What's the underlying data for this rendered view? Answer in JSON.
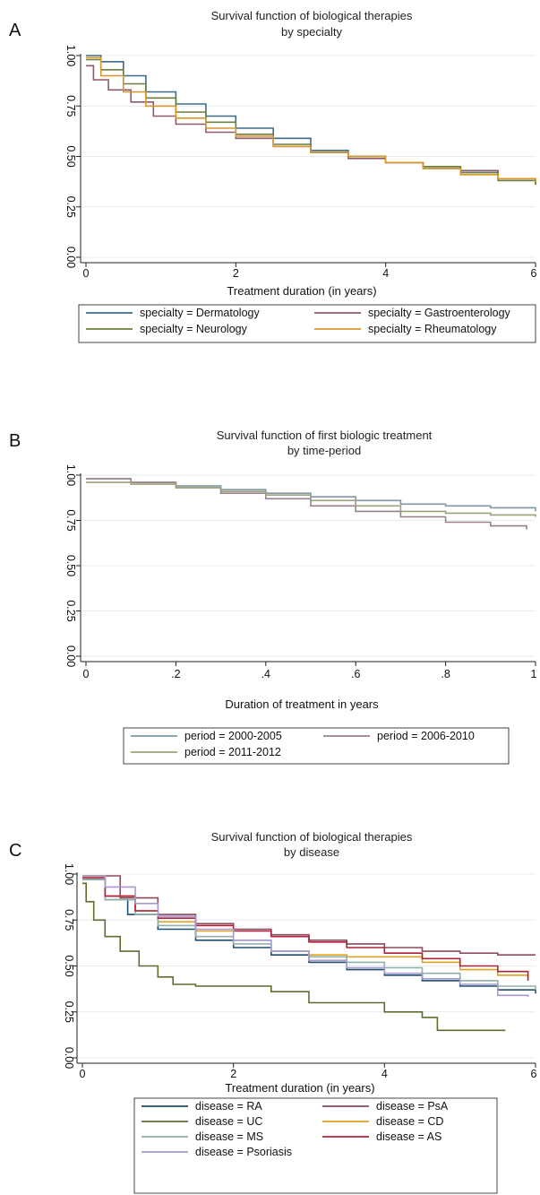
{
  "chart_data": [
    {
      "panel": "A",
      "type": "line",
      "title": "Survival function of biological therapies",
      "subtitle": "by specialty",
      "xlabel": "Treatment duration (in years)",
      "ylabel": "",
      "xlim": [
        0,
        6
      ],
      "ylim": [
        0,
        1
      ],
      "xticks": [
        "0",
        "2",
        "4",
        "6"
      ],
      "yticks": [
        "0.00",
        "0.25",
        "0.50",
        "0.75",
        "1.00"
      ],
      "grid": true,
      "legend_position": "bottom",
      "series": [
        {
          "name": "specialty = Dermatology",
          "color": "#3d6b8c",
          "x": [
            0,
            0.2,
            0.5,
            0.8,
            1.2,
            1.6,
            2.0,
            2.5,
            3.0,
            3.5,
            4.0,
            4.5,
            5.0,
            5.5,
            6.0
          ],
          "y": [
            1.0,
            0.97,
            0.9,
            0.82,
            0.76,
            0.7,
            0.64,
            0.59,
            0.53,
            0.5,
            0.47,
            0.44,
            0.42,
            0.39,
            0.36
          ]
        },
        {
          "name": "specialty = Gastroenterology",
          "color": "#8e5a6e",
          "x": [
            0,
            0.1,
            0.3,
            0.6,
            0.9,
            1.2,
            1.6,
            2.0,
            2.5,
            3.0,
            3.5,
            4.0,
            4.5,
            5.0,
            5.5,
            6.0
          ],
          "y": [
            0.95,
            0.88,
            0.83,
            0.77,
            0.7,
            0.66,
            0.62,
            0.59,
            0.55,
            0.52,
            0.49,
            0.47,
            0.45,
            0.43,
            0.39,
            0.37
          ]
        },
        {
          "name": "specialty = Neurology",
          "color": "#6b7f3e",
          "x": [
            0,
            0.2,
            0.5,
            0.8,
            1.2,
            1.6,
            2.0,
            2.5,
            3.0,
            3.5,
            4.0,
            4.5,
            5.0,
            5.5,
            6.0
          ],
          "y": [
            0.98,
            0.93,
            0.86,
            0.79,
            0.72,
            0.67,
            0.61,
            0.56,
            0.52,
            0.5,
            0.47,
            0.45,
            0.42,
            0.38,
            0.36
          ]
        },
        {
          "name": "specialty = Rheumatology",
          "color": "#d9962b",
          "x": [
            0,
            0.2,
            0.5,
            0.8,
            1.2,
            1.6,
            2.0,
            2.5,
            3.0,
            3.5,
            4.0,
            4.5,
            5.0,
            5.5,
            6.0
          ],
          "y": [
            0.99,
            0.9,
            0.82,
            0.75,
            0.69,
            0.64,
            0.6,
            0.55,
            0.52,
            0.5,
            0.47,
            0.44,
            0.41,
            0.39,
            0.37
          ]
        }
      ]
    },
    {
      "panel": "B",
      "type": "line",
      "title": "Survival function of first biologic treatment",
      "subtitle": "by time-period",
      "xlabel": "Duration of treatment in years",
      "ylabel": "",
      "xlim": [
        0,
        1
      ],
      "ylim": [
        0,
        1
      ],
      "xticks": [
        "0",
        ".2",
        ".4",
        ".6",
        ".8",
        "1"
      ],
      "yticks": [
        "0.00",
        "0.25",
        "0.50",
        "0.75",
        "1.00"
      ],
      "grid": true,
      "legend_position": "bottom",
      "series": [
        {
          "name": "period = 2000-2005",
          "color": "#7f97a6",
          "x": [
            0,
            0.1,
            0.2,
            0.3,
            0.4,
            0.5,
            0.6,
            0.7,
            0.8,
            0.9,
            1.0
          ],
          "y": [
            0.98,
            0.96,
            0.94,
            0.92,
            0.9,
            0.88,
            0.86,
            0.84,
            0.83,
            0.82,
            0.8
          ]
        },
        {
          "name": "period = 2006-2010",
          "color": "#9a7f8c",
          "x": [
            0,
            0.1,
            0.2,
            0.3,
            0.4,
            0.5,
            0.6,
            0.7,
            0.8,
            0.9,
            0.98
          ],
          "y": [
            0.98,
            0.96,
            0.93,
            0.9,
            0.87,
            0.83,
            0.8,
            0.77,
            0.74,
            0.72,
            0.7
          ]
        },
        {
          "name": "period = 2011-2012",
          "color": "#9aa27c",
          "x": [
            0,
            0.1,
            0.2,
            0.3,
            0.4,
            0.5,
            0.6,
            0.7,
            0.8,
            0.9,
            1.0
          ],
          "y": [
            0.96,
            0.95,
            0.93,
            0.91,
            0.89,
            0.86,
            0.83,
            0.8,
            0.79,
            0.78,
            0.77
          ]
        }
      ]
    },
    {
      "panel": "C",
      "type": "line",
      "title": "Survival function of biological therapies",
      "subtitle": "by disease",
      "xlabel": "Treatment duration (in years)",
      "ylabel": "",
      "xlim": [
        0,
        6
      ],
      "ylim": [
        0,
        1
      ],
      "xticks": [
        "0",
        "2",
        "4",
        "6"
      ],
      "yticks": [
        "0.00",
        "0.25",
        "0.50",
        "0.75",
        "1.00"
      ],
      "grid": true,
      "legend_position": "bottom",
      "series": [
        {
          "name": "disease = RA",
          "color": "#1f4e6e",
          "x": [
            0,
            0.3,
            0.6,
            1.0,
            1.5,
            2.0,
            2.5,
            3.0,
            3.5,
            4.0,
            4.5,
            5.0,
            5.5,
            6.0
          ],
          "y": [
            0.97,
            0.86,
            0.78,
            0.7,
            0.64,
            0.6,
            0.56,
            0.52,
            0.48,
            0.45,
            0.42,
            0.39,
            0.37,
            0.35
          ]
        },
        {
          "name": "disease = PsA",
          "color": "#8c4a5c",
          "x": [
            0,
            0.5,
            1.0,
            1.5,
            2.0,
            2.5,
            3.0,
            3.5,
            4.0,
            4.5,
            5.0,
            5.5,
            6.0
          ],
          "y": [
            0.99,
            0.87,
            0.78,
            0.73,
            0.7,
            0.67,
            0.64,
            0.62,
            0.6,
            0.58,
            0.57,
            0.56,
            0.56
          ]
        },
        {
          "name": "disease = UC",
          "color": "#5b6e2e",
          "x": [
            0,
            0.05,
            0.15,
            0.3,
            0.5,
            0.75,
            1.0,
            1.2,
            1.5,
            2.0,
            2.5,
            3.0,
            3.5,
            4.0,
            4.5,
            4.7,
            5.0,
            5.6
          ],
          "y": [
            0.95,
            0.85,
            0.75,
            0.66,
            0.58,
            0.5,
            0.44,
            0.4,
            0.39,
            0.39,
            0.36,
            0.3,
            0.3,
            0.25,
            0.22,
            0.15,
            0.15,
            0.15
          ]
        },
        {
          "name": "disease = CD",
          "color": "#e0a020",
          "x": [
            0,
            0.3,
            0.7,
            1.0,
            1.5,
            2.0,
            2.5,
            3.0,
            3.5,
            4.0,
            4.5,
            5.0,
            5.5,
            5.9
          ],
          "y": [
            0.99,
            0.88,
            0.8,
            0.74,
            0.69,
            0.64,
            0.58,
            0.56,
            0.55,
            0.55,
            0.52,
            0.48,
            0.45,
            0.44
          ]
        },
        {
          "name": "disease = MS",
          "color": "#8fb0a8",
          "x": [
            0,
            0.3,
            0.7,
            1.0,
            1.5,
            2.0,
            2.5,
            3.0,
            3.5,
            4.0,
            4.5,
            5.0,
            5.5,
            6.0
          ],
          "y": [
            0.97,
            0.86,
            0.78,
            0.72,
            0.66,
            0.62,
            0.58,
            0.55,
            0.52,
            0.49,
            0.46,
            0.42,
            0.39,
            0.37
          ]
        },
        {
          "name": "disease = AS",
          "color": "#b0203a",
          "x": [
            0,
            0.3,
            0.7,
            1.0,
            1.5,
            2.0,
            2.5,
            3.0,
            3.5,
            4.0,
            4.5,
            5.0,
            5.5,
            5.9
          ],
          "y": [
            0.98,
            0.88,
            0.8,
            0.76,
            0.72,
            0.69,
            0.66,
            0.63,
            0.6,
            0.57,
            0.54,
            0.5,
            0.47,
            0.42
          ]
        },
        {
          "name": "disease = Psoriasis",
          "color": "#a69ad0",
          "x": [
            0,
            0.3,
            0.7,
            1.0,
            1.5,
            2.0,
            2.5,
            3.0,
            3.5,
            4.0,
            4.5,
            5.0,
            5.5,
            5.9
          ],
          "y": [
            0.99,
            0.93,
            0.84,
            0.77,
            0.7,
            0.64,
            0.58,
            0.53,
            0.49,
            0.46,
            0.43,
            0.4,
            0.34,
            0.33
          ]
        }
      ]
    }
  ]
}
